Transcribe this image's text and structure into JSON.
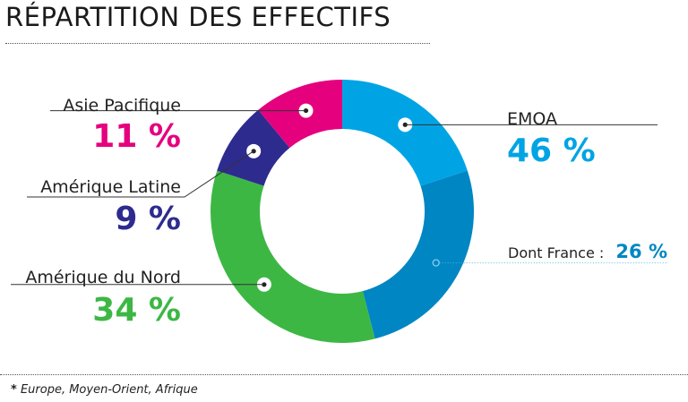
{
  "header": {
    "title": "RÉPARTITION DES EFFECTIFS"
  },
  "footnote": {
    "marker": "*",
    "text": "Europe, Moyen-Orient, Afrique"
  },
  "colors": {
    "emoa": "#00a4e4",
    "france": "#0086c3",
    "amerique_nord": "#3db744",
    "amerique_latine": "#2e2b8f",
    "asie_pacifique": "#e5007e"
  },
  "chart_data": {
    "type": "pie",
    "subtype": "donut",
    "slices": [
      {
        "name": "EMOA",
        "value": 46,
        "value_label": "46 %",
        "color": "#00a4e4"
      },
      {
        "name": "Amérique du Nord",
        "value": 34,
        "value_label": "34 %",
        "color": "#3db744"
      },
      {
        "name": "Amérique Latine",
        "value": 9,
        "value_label": "9 %",
        "color": "#2e2b8f"
      },
      {
        "name": "Asie Pacifique",
        "value": 11,
        "value_label": "11 %",
        "color": "#e5007e"
      }
    ],
    "sub_slice": {
      "parent": "EMOA",
      "name": "Dont France :",
      "value": 26,
      "value_label": "26 %",
      "color": "#0086c3"
    }
  }
}
